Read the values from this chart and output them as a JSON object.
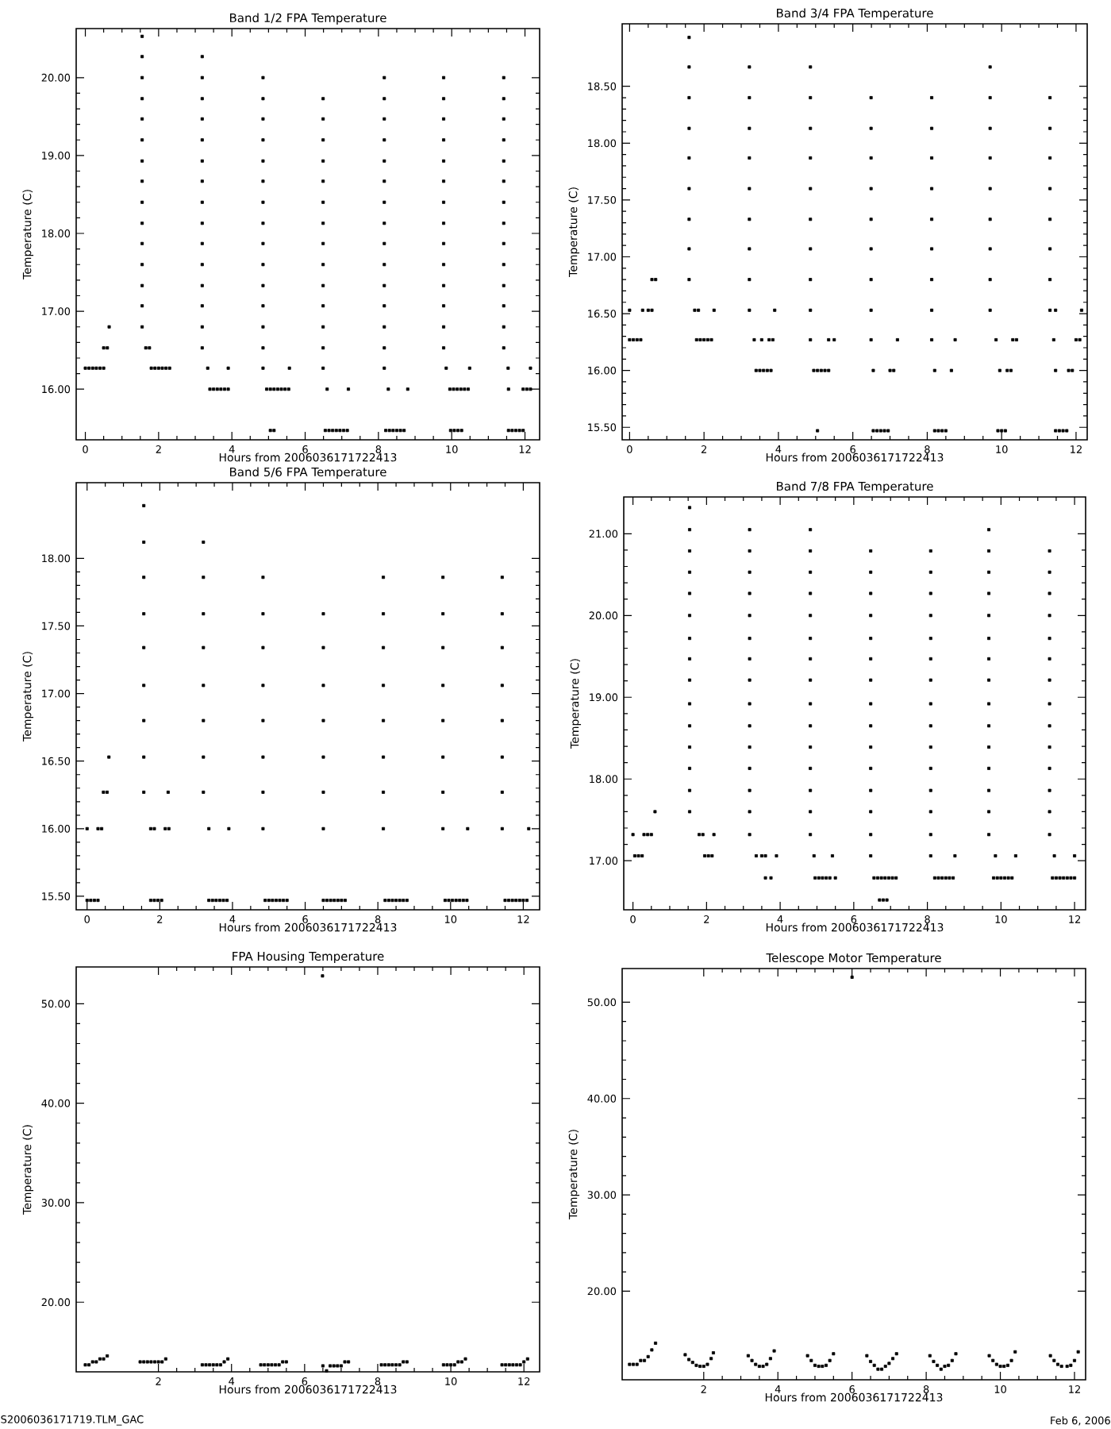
{
  "chart_data": [
    {
      "type": "scatter",
      "title": "Band 1/2 FPA Temperature",
      "xlabel": "Hours from 2006036171722413",
      "ylabel": "Temperature (C)",
      "marker": "square",
      "color": "#000000",
      "xlim": [
        -0.25,
        12.4
      ],
      "xticks": [
        0,
        2,
        4,
        6,
        8,
        10,
        12
      ],
      "ylim": [
        15.35,
        20.63
      ],
      "yticks": [
        {
          "value": 16,
          "label": "16.00"
        },
        {
          "value": 17,
          "label": "17.00"
        },
        {
          "value": 18,
          "label": "18.00"
        },
        {
          "value": 19,
          "label": "19.00"
        },
        {
          "value": 20,
          "label": "20.00"
        }
      ],
      "x": [
        0,
        0.1,
        0.2,
        0.3,
        0.4,
        0.5,
        0.5,
        0.6,
        0.65,
        1.55,
        1.55,
        1.55,
        1.55,
        1.55,
        1.55,
        1.55,
        1.55,
        1.55,
        1.55,
        1.55,
        1.55,
        1.55,
        1.55,
        1.55,
        1.65,
        1.75,
        1.8,
        1.9,
        2.0,
        2.1,
        2.2,
        2.3,
        3.19,
        3.19,
        3.19,
        3.19,
        3.19,
        3.19,
        3.19,
        3.19,
        3.19,
        3.19,
        3.19,
        3.19,
        3.19,
        3.19,
        3.19,
        3.34,
        3.9,
        3.4,
        3.5,
        3.6,
        3.7,
        3.8,
        3.9,
        4.85,
        4.85,
        4.85,
        4.85,
        4.85,
        4.85,
        4.85,
        4.85,
        4.85,
        4.85,
        4.85,
        4.85,
        4.85,
        4.85,
        4.85,
        5.57,
        4.95,
        5.05,
        5.15,
        5.25,
        5.35,
        5.45,
        5.55,
        5.05,
        5.15,
        6.49,
        6.49,
        6.49,
        6.49,
        6.49,
        6.49,
        6.49,
        6.49,
        6.49,
        6.49,
        6.49,
        6.49,
        6.49,
        6.49,
        6.6,
        7.18,
        6.55,
        6.65,
        6.75,
        6.85,
        6.95,
        7.05,
        7.15,
        8.16,
        8.16,
        8.16,
        8.16,
        8.16,
        8.16,
        8.16,
        8.16,
        8.16,
        8.16,
        8.16,
        8.16,
        8.16,
        8.16,
        8.16,
        8.27,
        8.8,
        8.2,
        8.3,
        8.4,
        8.5,
        8.6,
        8.7,
        9.78,
        9.78,
        9.78,
        9.78,
        9.78,
        9.78,
        9.78,
        9.78,
        9.78,
        9.78,
        9.78,
        9.78,
        9.78,
        9.78,
        9.85,
        10.49,
        9.95,
        10.05,
        10.15,
        10.25,
        10.35,
        10.45,
        9.97,
        10.07,
        10.17,
        10.27,
        11.42,
        11.42,
        11.42,
        11.42,
        11.42,
        11.42,
        11.42,
        11.42,
        11.42,
        11.42,
        11.42,
        11.42,
        11.42,
        11.42,
        11.54,
        12.15,
        11.55,
        11.95,
        12.05,
        12.15,
        11.55,
        11.65,
        11.75,
        11.85,
        11.95
      ],
      "values": [
        16.27,
        16.27,
        16.27,
        16.27,
        16.27,
        16.27,
        16.53,
        16.53,
        16.8,
        16.8,
        17.07,
        17.33,
        17.6,
        17.87,
        18.13,
        18.4,
        18.67,
        18.93,
        19.2,
        19.47,
        19.73,
        20,
        20.27,
        20.53,
        16.53,
        16.53,
        16.27,
        16.27,
        16.27,
        16.27,
        16.27,
        16.27,
        16.53,
        16.8,
        17.07,
        17.33,
        17.6,
        17.87,
        18.13,
        18.4,
        18.67,
        18.93,
        19.2,
        19.47,
        19.73,
        20,
        20.27,
        16.27,
        16.27,
        16,
        16,
        16,
        16,
        16,
        16,
        16.53,
        16.8,
        17.07,
        17.33,
        17.6,
        17.87,
        18.13,
        18.4,
        18.67,
        18.93,
        19.2,
        19.47,
        19.73,
        20,
        16.27,
        16.27,
        16,
        16,
        16,
        16,
        16,
        16,
        16,
        15.47,
        15.47,
        16.27,
        16.53,
        16.8,
        17.07,
        17.33,
        17.6,
        17.87,
        18.13,
        18.4,
        18.67,
        18.93,
        19.2,
        19.47,
        19.73,
        16,
        16,
        15.47,
        15.47,
        15.47,
        15.47,
        15.47,
        15.47,
        15.47,
        16.27,
        16.53,
        16.8,
        17.07,
        17.33,
        17.6,
        17.87,
        18.13,
        18.4,
        18.67,
        18.93,
        19.2,
        19.47,
        19.73,
        20,
        16,
        16,
        15.47,
        15.47,
        15.47,
        15.47,
        15.47,
        15.47,
        16.53,
        16.8,
        17.07,
        17.33,
        17.6,
        17.87,
        18.13,
        18.4,
        18.67,
        18.93,
        19.2,
        19.47,
        19.73,
        20,
        16.27,
        16.27,
        16,
        16,
        16,
        16,
        16,
        16,
        15.47,
        15.47,
        15.47,
        15.47,
        16.53,
        16.8,
        17.07,
        17.33,
        17.6,
        17.87,
        18.13,
        18.4,
        18.67,
        18.93,
        19.2,
        19.47,
        19.73,
        20,
        16.27,
        16.27,
        16,
        16,
        16,
        16,
        15.47,
        15.47,
        15.47,
        15.47,
        15.47
      ]
    },
    {
      "type": "scatter",
      "title": "Band 3/4 FPA Temperature",
      "xlabel": "Hours from 2006036171722413",
      "ylabel": "Temperature (C)",
      "marker": "square",
      "color": "#000000",
      "xlim": [
        -0.2,
        12.3
      ],
      "xticks": [
        0,
        2,
        4,
        6,
        8,
        10,
        12
      ],
      "ylim": [
        15.39,
        19.05
      ],
      "yticks": [
        {
          "value": 15.5,
          "label": "15.50"
        },
        {
          "value": 16,
          "label": "16.00"
        },
        {
          "value": 16.5,
          "label": "16.50"
        },
        {
          "value": 17,
          "label": "17.00"
        },
        {
          "value": 17.5,
          "label": "17.50"
        },
        {
          "value": 18,
          "label": "18.00"
        },
        {
          "value": 18.5,
          "label": "18.50"
        }
      ],
      "x": [
        0,
        0.35,
        0.5,
        0.6,
        0,
        0.1,
        0.2,
        0.3,
        0.6,
        0.7,
        1.6,
        1.6,
        1.6,
        1.6,
        1.6,
        1.6,
        1.6,
        1.6,
        1.6,
        1.75,
        1.85,
        2.27,
        1.8,
        1.9,
        2.0,
        2.1,
        2.2,
        3.22,
        3.22,
        3.22,
        3.22,
        3.22,
        3.22,
        3.22,
        3.22,
        3.22,
        3.35,
        3.55,
        3.75,
        3.85,
        3.9,
        3.4,
        3.5,
        3.6,
        3.7,
        3.8,
        4.86,
        4.86,
        4.86,
        4.86,
        4.86,
        4.86,
        4.86,
        4.86,
        4.86,
        4.86,
        5.35,
        5.5,
        4.95,
        5.05,
        5.15,
        5.25,
        5.35,
        5.05,
        6.49,
        6.49,
        6.49,
        6.49,
        6.49,
        6.49,
        6.49,
        6.49,
        6.49,
        6.55,
        7.0,
        7.1,
        7.2,
        6.55,
        6.65,
        6.75,
        6.85,
        6.95,
        8.12,
        8.12,
        8.12,
        8.12,
        8.12,
        8.12,
        8.12,
        8.12,
        8.12,
        8.2,
        8.65,
        8.75,
        8.2,
        8.3,
        8.4,
        8.5,
        9.69,
        9.69,
        9.69,
        9.69,
        9.69,
        9.69,
        9.69,
        9.69,
        9.69,
        9.85,
        10.3,
        10.4,
        9.95,
        10.15,
        10.25,
        9.9,
        10.0,
        10.1,
        11.3,
        11.3,
        11.3,
        11.3,
        11.3,
        11.3,
        11.3,
        11.3,
        11.45,
        12.15,
        11.4,
        12.0,
        12.1,
        11.45,
        11.8,
        11.9,
        11.45,
        11.55,
        11.65,
        11.75
      ],
      "values": [
        16.53,
        16.53,
        16.53,
        16.53,
        16.27,
        16.27,
        16.27,
        16.27,
        16.8,
        16.8,
        16.8,
        17.07,
        17.33,
        17.6,
        17.87,
        18.13,
        18.4,
        18.67,
        18.93,
        16.53,
        16.53,
        16.53,
        16.27,
        16.27,
        16.27,
        16.27,
        16.27,
        16.53,
        16.8,
        17.07,
        17.33,
        17.6,
        17.87,
        18.13,
        18.4,
        18.67,
        16.27,
        16.27,
        16.27,
        16.27,
        16.53,
        16,
        16,
        16,
        16,
        16,
        16.27,
        16.53,
        16.8,
        17.07,
        17.33,
        17.6,
        17.87,
        18.13,
        18.4,
        18.67,
        16.27,
        16.27,
        16,
        16,
        16,
        16,
        16,
        15.47,
        16.27,
        16.53,
        16.8,
        17.07,
        17.33,
        17.6,
        17.87,
        18.13,
        18.4,
        16,
        16,
        16,
        16.27,
        15.47,
        15.47,
        15.47,
        15.47,
        15.47,
        16.27,
        16.53,
        16.8,
        17.07,
        17.33,
        17.6,
        17.87,
        18.13,
        18.4,
        16,
        16,
        16.27,
        15.47,
        15.47,
        15.47,
        15.47,
        16.53,
        16.8,
        17.07,
        17.33,
        17.6,
        17.87,
        18.13,
        18.4,
        18.67,
        16.27,
        16.27,
        16.27,
        16,
        16,
        16,
        15.47,
        15.47,
        15.47,
        16.53,
        16.8,
        17.07,
        17.33,
        17.6,
        17.87,
        18.13,
        18.4,
        16.53,
        16.53,
        16.27,
        16.27,
        16.27,
        16,
        16,
        16,
        15.47,
        15.47,
        15.47,
        15.47
      ]
    },
    {
      "type": "scatter",
      "title": "Band 5/6 FPA Temperature",
      "xlabel": "Hours from 2006036171722413",
      "ylabel": "Temperature (C)",
      "marker": "square",
      "color": "#000000",
      "xlim": [
        -0.3,
        12.45
      ],
      "xticks": [
        0,
        2,
        4,
        6,
        8,
        10,
        12
      ],
      "ylim": [
        15.4,
        18.56
      ],
      "yticks": [
        {
          "value": 15.5,
          "label": "15.50"
        },
        {
          "value": 16,
          "label": "16.00"
        },
        {
          "value": 16.5,
          "label": "16.50"
        },
        {
          "value": 17,
          "label": "17.00"
        },
        {
          "value": 17.5,
          "label": "17.50"
        },
        {
          "value": 18,
          "label": "18.00"
        }
      ],
      "x": [
        0,
        0.3,
        0.4,
        0.45,
        0.55,
        0.6,
        0,
        0.1,
        0.2,
        0.3,
        1.56,
        1.56,
        1.56,
        1.56,
        1.56,
        1.56,
        1.56,
        1.56,
        1.56,
        1.75,
        1.85,
        2.15,
        2.25,
        2.23,
        1.75,
        1.85,
        1.95,
        2.05,
        3.2,
        3.2,
        3.2,
        3.2,
        3.2,
        3.2,
        3.2,
        3.2,
        3.35,
        3.9,
        3.35,
        3.45,
        3.55,
        3.65,
        3.75,
        3.85,
        4.84,
        4.84,
        4.84,
        4.84,
        4.84,
        4.84,
        4.84,
        4.84,
        4.9,
        5.0,
        5.1,
        5.2,
        5.3,
        5.4,
        5.5,
        6.5,
        6.5,
        6.5,
        6.5,
        6.5,
        6.5,
        6.5,
        6.5,
        6.6,
        6.7,
        6.8,
        6.9,
        7.0,
        7.1,
        8.15,
        8.15,
        8.15,
        8.15,
        8.15,
        8.15,
        8.15,
        8.15,
        8.2,
        8.3,
        8.4,
        8.5,
        8.6,
        8.7,
        8.8,
        9.79,
        9.79,
        9.79,
        9.79,
        9.79,
        9.79,
        9.79,
        9.79,
        10.47,
        9.85,
        9.95,
        10.05,
        10.15,
        10.25,
        10.35,
        10.45,
        11.42,
        11.42,
        11.42,
        11.42,
        11.42,
        11.42,
        11.42,
        11.42,
        12.15,
        11.5,
        11.6,
        11.7,
        11.8,
        11.9,
        12.0,
        12.1
      ],
      "values": [
        16,
        16,
        16,
        16.27,
        16.27,
        16.53,
        15.47,
        15.47,
        15.47,
        15.47,
        16.27,
        16.53,
        16.8,
        17.06,
        17.34,
        17.59,
        17.86,
        18.12,
        18.39,
        16,
        16,
        16,
        16,
        16.27,
        15.47,
        15.47,
        15.47,
        15.47,
        16.27,
        16.53,
        16.8,
        17.06,
        17.34,
        17.59,
        17.86,
        18.12,
        16,
        16,
        15.47,
        15.47,
        15.47,
        15.47,
        15.47,
        15.47,
        16,
        16.27,
        16.53,
        16.8,
        17.06,
        17.34,
        17.59,
        17.86,
        15.47,
        15.47,
        15.47,
        15.47,
        15.47,
        15.47,
        15.47,
        16,
        16.27,
        16.53,
        16.8,
        17.06,
        17.34,
        17.59,
        15.47,
        15.47,
        15.47,
        15.47,
        15.47,
        15.47,
        15.47,
        16,
        16.27,
        16.53,
        16.8,
        17.06,
        17.34,
        17.59,
        17.86,
        15.47,
        15.47,
        15.47,
        15.47,
        15.47,
        15.47,
        15.47,
        16,
        16.27,
        16.53,
        16.8,
        17.06,
        17.34,
        17.59,
        17.86,
        16,
        15.47,
        15.47,
        15.47,
        15.47,
        15.47,
        15.47,
        15.47,
        16,
        16.27,
        16.53,
        16.8,
        17.06,
        17.34,
        17.59,
        17.86,
        16,
        15.47,
        15.47,
        15.47,
        15.47,
        15.47,
        15.47,
        15.47
      ]
    },
    {
      "type": "scatter",
      "title": "Band 7/8 FPA Temperature",
      "xlabel": "Hours from 2006036171722413",
      "ylabel": "Temperature (C)",
      "marker": "square",
      "color": "#000000",
      "xlim": [
        -0.25,
        12.3
      ],
      "xticks": [
        0,
        2,
        4,
        6,
        8,
        10,
        12
      ],
      "ylim": [
        16.4,
        21.45
      ],
      "yticks": [
        {
          "value": 17,
          "label": "17.00"
        },
        {
          "value": 18,
          "label": "18.00"
        },
        {
          "value": 19,
          "label": "19.00"
        },
        {
          "value": 20,
          "label": "20.00"
        },
        {
          "value": 21,
          "label": "21.00"
        }
      ],
      "x": [
        0,
        0.3,
        0.4,
        0.5,
        0.05,
        0.15,
        0.25,
        0.6,
        1.54,
        1.54,
        1.54,
        1.54,
        1.54,
        1.54,
        1.54,
        1.54,
        1.54,
        1.54,
        1.54,
        1.54,
        1.54,
        1.54,
        1.54,
        1.8,
        1.9,
        2.2,
        1.95,
        2.05,
        2.15,
        3.17,
        3.17,
        3.17,
        3.17,
        3.17,
        3.17,
        3.17,
        3.17,
        3.17,
        3.17,
        3.17,
        3.17,
        3.17,
        3.17,
        3.17,
        3.35,
        3.5,
        3.6,
        3.9,
        3.6,
        3.75,
        4.82,
        4.82,
        4.82,
        4.82,
        4.82,
        4.82,
        4.82,
        4.82,
        4.82,
        4.82,
        4.82,
        4.82,
        4.82,
        4.82,
        4.82,
        4.92,
        5.42,
        4.95,
        5.05,
        5.15,
        5.25,
        5.35,
        5.5,
        6.46,
        6.46,
        6.46,
        6.46,
        6.46,
        6.46,
        6.46,
        6.46,
        6.46,
        6.46,
        6.46,
        6.46,
        6.46,
        6.46,
        6.46,
        6.55,
        6.65,
        6.75,
        6.85,
        6.95,
        7.05,
        7.15,
        6.7,
        6.8,
        6.9,
        8.09,
        8.09,
        8.09,
        8.09,
        8.09,
        8.09,
        8.09,
        8.09,
        8.09,
        8.09,
        8.09,
        8.09,
        8.09,
        8.09,
        8.09,
        8.2,
        8.3,
        8.4,
        8.5,
        8.6,
        8.7,
        8.75,
        9.67,
        9.67,
        9.67,
        9.67,
        9.67,
        9.67,
        9.67,
        9.67,
        9.67,
        9.67,
        9.67,
        9.67,
        9.67,
        9.67,
        9.67,
        9.85,
        10.4,
        9.8,
        9.9,
        10.0,
        10.1,
        10.2,
        10.3,
        11.32,
        11.32,
        11.32,
        11.32,
        11.32,
        11.32,
        11.32,
        11.32,
        11.32,
        11.32,
        11.32,
        11.32,
        11.32,
        11.32,
        11.45,
        12.0,
        11.4,
        11.5,
        11.6,
        11.7,
        11.8,
        11.9,
        12.0
      ],
      "values": [
        17.32,
        17.32,
        17.32,
        17.32,
        17.06,
        17.06,
        17.06,
        17.6,
        17.6,
        17.86,
        18.13,
        18.39,
        18.65,
        18.92,
        19.21,
        19.47,
        19.72,
        20,
        20.27,
        20.53,
        20.79,
        21.05,
        21.32,
        17.32,
        17.32,
        17.32,
        17.06,
        17.06,
        17.06,
        17.32,
        17.6,
        17.86,
        18.13,
        18.39,
        18.65,
        18.92,
        19.21,
        19.47,
        19.72,
        20,
        20.27,
        20.53,
        20.79,
        21.05,
        17.06,
        17.06,
        17.06,
        17.06,
        16.79,
        16.79,
        17.32,
        17.6,
        17.86,
        18.13,
        18.39,
        18.65,
        18.92,
        19.21,
        19.47,
        19.72,
        20,
        20.27,
        20.53,
        20.79,
        21.05,
        17.06,
        17.06,
        16.79,
        16.79,
        16.79,
        16.79,
        16.79,
        16.79,
        17.06,
        17.32,
        17.6,
        17.86,
        18.13,
        18.39,
        18.65,
        18.92,
        19.21,
        19.47,
        19.72,
        20,
        20.27,
        20.53,
        20.79,
        16.79,
        16.79,
        16.79,
        16.79,
        16.79,
        16.79,
        16.79,
        16.52,
        16.52,
        16.52,
        17.06,
        17.32,
        17.6,
        17.86,
        18.13,
        18.39,
        18.65,
        18.92,
        19.21,
        19.47,
        19.72,
        20,
        20.27,
        20.53,
        20.79,
        16.79,
        16.79,
        16.79,
        16.79,
        16.79,
        16.79,
        17.06,
        17.32,
        17.6,
        17.86,
        18.13,
        18.39,
        18.65,
        18.92,
        19.21,
        19.47,
        19.72,
        20,
        20.27,
        20.53,
        20.79,
        21.05,
        17.06,
        17.06,
        16.79,
        16.79,
        16.79,
        16.79,
        16.79,
        16.79,
        17.32,
        17.6,
        17.86,
        18.13,
        18.39,
        18.65,
        18.92,
        19.21,
        19.47,
        19.72,
        20,
        20.27,
        20.53,
        20.79,
        17.06,
        17.06,
        16.79,
        16.79,
        16.79,
        16.79,
        16.79,
        16.79,
        16.79
      ]
    },
    {
      "type": "scatter",
      "title": "FPA Housing Temperature",
      "xlabel": "Hours from 2006036171722413",
      "ylabel": "Temperature (C)",
      "marker": "square",
      "color": "#000000",
      "xlim": [
        -0.25,
        12.43
      ],
      "xticks": [
        2,
        4,
        6,
        8,
        10,
        12
      ],
      "ylim": [
        13.0,
        53.7
      ],
      "yticks": [
        {
          "value": 20,
          "label": "20.00"
        },
        {
          "value": 30,
          "label": "30.00"
        },
        {
          "value": 40,
          "label": "40.00"
        },
        {
          "value": 50,
          "label": "50.00"
        }
      ],
      "annotations": [
        "S2006036171719.TLM_GAC"
      ],
      "x": [
        0,
        0.1,
        0.2,
        0.3,
        0.4,
        0.5,
        0.6,
        1.5,
        1.6,
        1.7,
        1.8,
        1.9,
        2.0,
        2.1,
        2.2,
        3.2,
        3.3,
        3.4,
        3.5,
        3.6,
        3.7,
        3.8,
        3.9,
        4.8,
        4.9,
        5.0,
        5.1,
        5.2,
        5.3,
        5.4,
        5.5,
        6.49,
        6.5,
        6.6,
        6.7,
        6.8,
        6.9,
        7.0,
        7.1,
        7.2,
        8.1,
        8.2,
        8.3,
        8.4,
        8.5,
        8.6,
        8.7,
        8.8,
        9.8,
        9.9,
        10.0,
        10.1,
        10.2,
        10.3,
        10.4,
        11.4,
        11.5,
        11.6,
        11.7,
        11.8,
        11.9,
        12.0,
        12.1
      ],
      "values": [
        13.7,
        13.7,
        14.0,
        14.0,
        14.3,
        14.3,
        14.6,
        14.0,
        14.0,
        14.0,
        14.0,
        14.0,
        14.0,
        14.0,
        14.3,
        13.7,
        13.7,
        13.7,
        13.7,
        13.7,
        13.7,
        14.0,
        14.3,
        13.7,
        13.7,
        13.7,
        13.7,
        13.7,
        13.7,
        14.0,
        14.0,
        52.8,
        13.6,
        13.1,
        13.6,
        13.6,
        13.6,
        13.6,
        14.0,
        14.0,
        13.7,
        13.7,
        13.7,
        13.7,
        13.7,
        13.7,
        14.0,
        14.0,
        13.7,
        13.7,
        13.7,
        13.7,
        14.0,
        14.0,
        14.3,
        13.7,
        13.7,
        13.7,
        13.7,
        13.7,
        13.7,
        14.0,
        14.3
      ]
    },
    {
      "type": "scatter",
      "title": "Telescope Motor Temperature",
      "xlabel": "Hours from 2006036171722413",
      "ylabel": "Temperature (C)",
      "marker": "square",
      "color": "#000000",
      "xlim": [
        -0.2,
        12.3
      ],
      "xticks": [
        2,
        4,
        6,
        8,
        10,
        12
      ],
      "ylim": [
        10.8,
        53.5
      ],
      "yticks": [
        {
          "value": 20,
          "label": "20.00"
        },
        {
          "value": 30,
          "label": "30.00"
        },
        {
          "value": 40,
          "label": "40.00"
        },
        {
          "value": 50,
          "label": "50.00"
        }
      ],
      "annotations": [
        "Feb  6, 2006"
      ],
      "x": [
        0,
        0.1,
        0.2,
        0.3,
        0.4,
        0.5,
        0.6,
        0.7,
        1.5,
        1.6,
        1.7,
        1.8,
        1.9,
        2.0,
        2.1,
        2.2,
        2.26,
        3.2,
        3.3,
        3.4,
        3.5,
        3.6,
        3.7,
        3.8,
        3.9,
        4.8,
        4.9,
        5.0,
        5.1,
        5.2,
        5.3,
        5.4,
        5.5,
        6.0,
        6.4,
        6.5,
        6.6,
        6.7,
        6.8,
        6.9,
        7.0,
        7.1,
        7.2,
        8.1,
        8.2,
        8.3,
        8.4,
        8.5,
        8.6,
        8.7,
        8.8,
        9.7,
        9.8,
        9.9,
        10.0,
        10.1,
        10.2,
        10.3,
        10.4,
        11.35,
        11.45,
        11.55,
        11.65,
        11.8,
        11.9,
        12.0,
        12.1
      ],
      "values": [
        12.4,
        12.4,
        12.4,
        12.8,
        12.8,
        13.2,
        13.9,
        14.6,
        13.4,
        12.9,
        12.6,
        12.3,
        12.2,
        12.2,
        12.4,
        13.0,
        13.6,
        13.3,
        12.8,
        12.4,
        12.2,
        12.2,
        12.4,
        13.0,
        13.8,
        13.3,
        12.8,
        12.3,
        12.2,
        12.2,
        12.3,
        12.8,
        13.5,
        52.6,
        13.3,
        12.7,
        12.3,
        11.9,
        11.9,
        12.2,
        12.5,
        13.0,
        13.5,
        13.3,
        12.7,
        12.3,
        11.9,
        12.2,
        12.3,
        12.8,
        13.5,
        13.3,
        12.8,
        12.4,
        12.2,
        12.2,
        12.3,
        12.8,
        13.7,
        13.3,
        12.8,
        12.4,
        12.2,
        12.2,
        12.3,
        12.8,
        13.7
      ]
    }
  ]
}
